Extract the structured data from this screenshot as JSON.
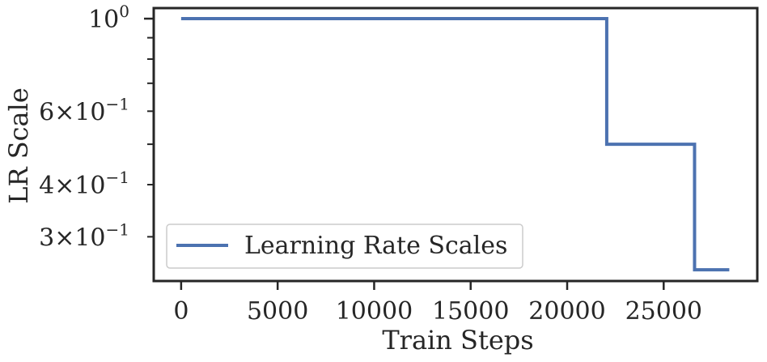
{
  "chart_data": {
    "type": "line",
    "xlabel": "Train Steps",
    "ylabel": "LR Scale",
    "x_scale": "linear",
    "y_scale": "log",
    "xlim": [
      -1420,
      29850
    ],
    "ylim": [
      0.235,
      1.06
    ],
    "x_ticks": [
      0,
      5000,
      10000,
      15000,
      20000,
      25000
    ],
    "x_tick_labels": [
      "0",
      "5000",
      "10000",
      "15000",
      "20000",
      "25000"
    ],
    "y_major_ticks": [
      {
        "value": 1.0,
        "base": "10",
        "exp": "0"
      }
    ],
    "y_minor_ticks": [
      {
        "value": 0.3,
        "mant": "3",
        "base": "10",
        "exp": "−1"
      },
      {
        "value": 0.4,
        "mant": "4",
        "base": "10",
        "exp": "−1"
      },
      {
        "value": 0.5
      },
      {
        "value": 0.6,
        "mant": "6",
        "base": "10",
        "exp": "−1"
      },
      {
        "value": 0.7
      },
      {
        "value": 0.8
      },
      {
        "value": 0.9
      }
    ],
    "grid": false,
    "legend_position": "lower-left",
    "series": [
      {
        "name": "Learning Rate Scales",
        "color": "#4c72b0",
        "x": [
          0,
          22050,
          22050,
          26600,
          26600,
          28400
        ],
        "y": [
          1.0,
          1.0,
          0.5,
          0.5,
          0.25,
          0.25
        ]
      }
    ]
  }
}
